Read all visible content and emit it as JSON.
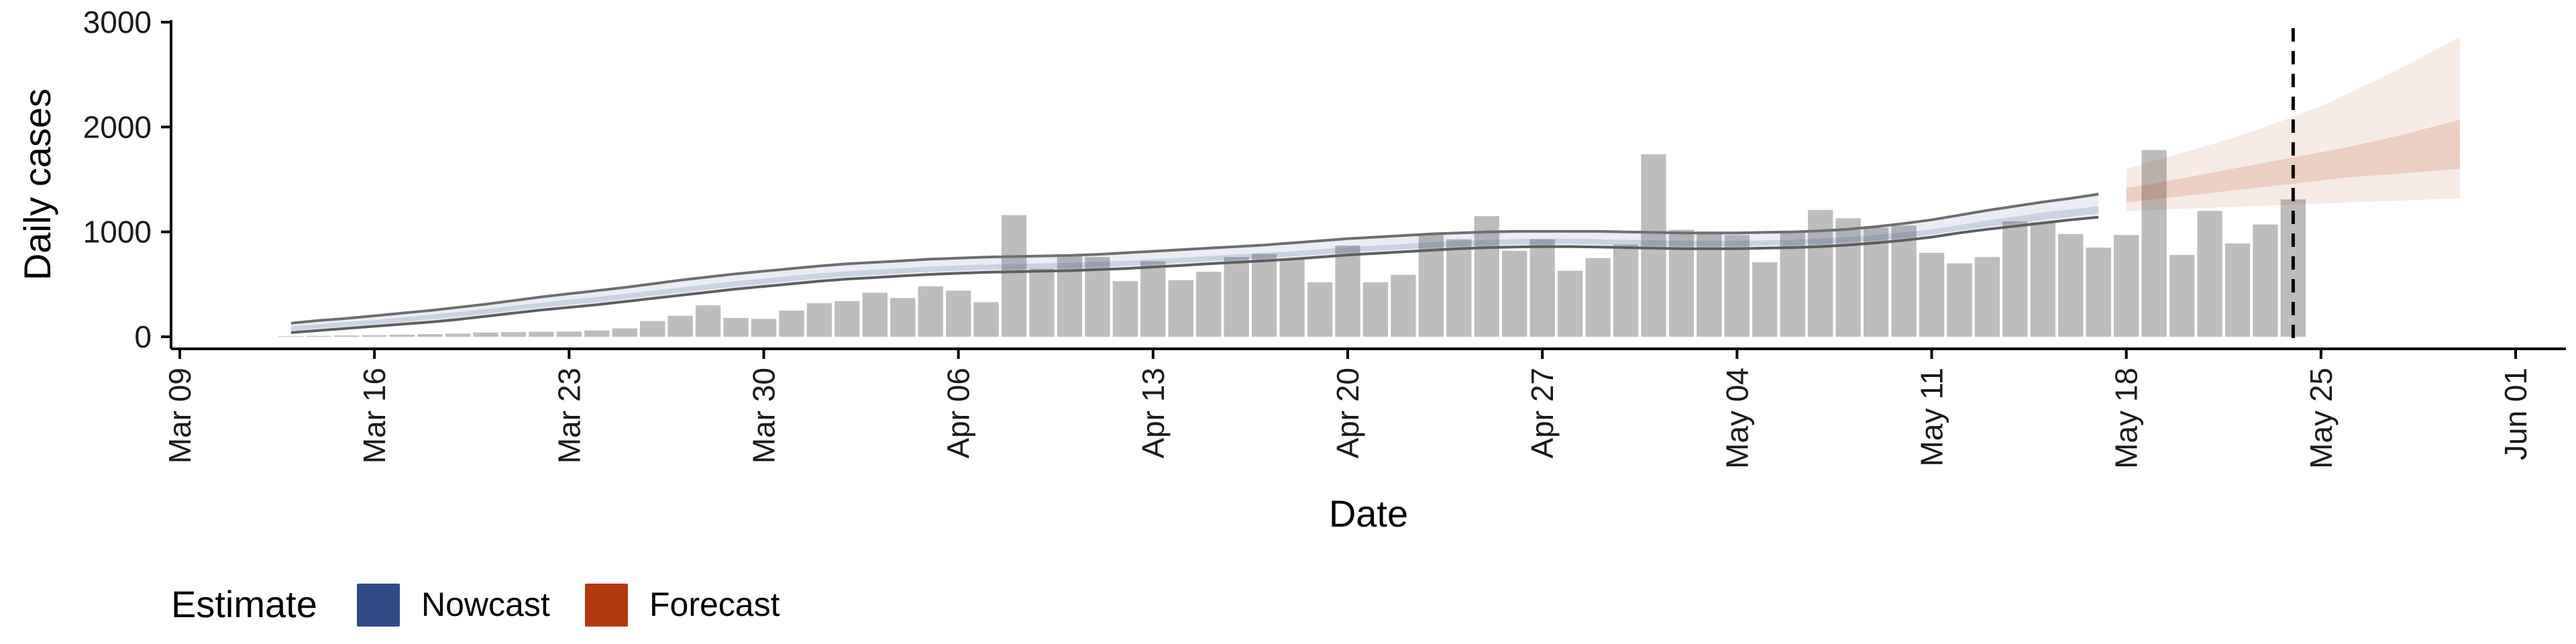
{
  "chart_data": {
    "type": "bar",
    "title": "",
    "xlabel": "Date",
    "ylabel": "Daily cases",
    "ylim": [
      0,
      3000
    ],
    "y_ticks": [
      0,
      1000,
      2000,
      3000
    ],
    "x_range": [
      "2020-03-09",
      "2020-06-01"
    ],
    "x_ticks": [
      {
        "date": "2020-03-09",
        "label": "Mar 09"
      },
      {
        "date": "2020-03-16",
        "label": "Mar 16"
      },
      {
        "date": "2020-03-23",
        "label": "Mar 23"
      },
      {
        "date": "2020-03-30",
        "label": "Mar 30"
      },
      {
        "date": "2020-04-06",
        "label": "Apr 06"
      },
      {
        "date": "2020-04-13",
        "label": "Apr 13"
      },
      {
        "date": "2020-04-20",
        "label": "Apr 20"
      },
      {
        "date": "2020-04-27",
        "label": "Apr 27"
      },
      {
        "date": "2020-05-04",
        "label": "May 04"
      },
      {
        "date": "2020-05-11",
        "label": "May 11"
      },
      {
        "date": "2020-05-18",
        "label": "May 18"
      },
      {
        "date": "2020-05-25",
        "label": "May 25"
      },
      {
        "date": "2020-06-01",
        "label": "Jun 01"
      }
    ],
    "grid": false,
    "bar_color": "#bdbdbd",
    "bars": {
      "start_date": "2020-03-13",
      "values": [
        5,
        8,
        12,
        15,
        20,
        25,
        30,
        40,
        45,
        48,
        50,
        60,
        80,
        150,
        200,
        300,
        180,
        170,
        250,
        320,
        340,
        420,
        370,
        480,
        440,
        330,
        1160,
        650,
        780,
        760,
        530,
        720,
        540,
        620,
        760,
        790,
        740,
        520,
        870,
        520,
        590,
        970,
        930,
        1150,
        820,
        930,
        630,
        750,
        880,
        1740,
        1020,
        990,
        970,
        710,
        1000,
        1210,
        1130,
        1040,
        1060,
        800,
        700,
        760,
        1100,
        1090,
        980,
        850,
        970,
        1780,
        780,
        1200,
        890,
        1070,
        1310
      ]
    },
    "series": [
      {
        "name": "Nowcast",
        "color": "#2e4a87",
        "start_date": "2020-03-13",
        "median": [
          80,
          100,
          120,
          140,
          160,
          185,
          210,
          240,
          270,
          300,
          330,
          355,
          385,
          415,
          445,
          475,
          505,
          530,
          555,
          580,
          600,
          615,
          630,
          645,
          655,
          665,
          670,
          675,
          680,
          690,
          700,
          715,
          730,
          745,
          760,
          775,
          790,
          810,
          830,
          845,
          860,
          875,
          890,
          900,
          905,
          910,
          910,
          905,
          900,
          895,
          890,
          890,
          890,
          895,
          900,
          910,
          925,
          945,
          970,
          1000,
          1040,
          1080,
          1115,
          1150,
          1180,
          1210
        ],
        "lower_outer": [
          40,
          60,
          80,
          100,
          120,
          140,
          165,
          195,
          225,
          255,
          280,
          305,
          335,
          365,
          395,
          425,
          455,
          480,
          505,
          530,
          550,
          565,
          580,
          595,
          605,
          615,
          620,
          625,
          630,
          640,
          650,
          665,
          680,
          695,
          710,
          725,
          740,
          760,
          780,
          795,
          810,
          825,
          840,
          850,
          855,
          860,
          860,
          855,
          850,
          845,
          840,
          840,
          840,
          845,
          850,
          860,
          875,
          895,
          920,
          950,
          990,
          1025,
          1055,
          1085,
          1115,
          1140
        ],
        "upper_outer": [
          130,
          155,
          175,
          200,
          225,
          250,
          280,
          310,
          345,
          380,
          410,
          440,
          470,
          505,
          540,
          570,
          600,
          625,
          650,
          675,
          695,
          710,
          725,
          740,
          750,
          760,
          765,
          770,
          775,
          785,
          800,
          815,
          830,
          845,
          860,
          875,
          895,
          915,
          935,
          950,
          965,
          980,
          990,
          1000,
          1005,
          1005,
          1005,
          1005,
          1000,
          995,
          990,
          990,
          990,
          995,
          1000,
          1010,
          1025,
          1050,
          1080,
          1115,
          1160,
          1205,
          1245,
          1285,
          1320,
          1360
        ],
        "lower_inner": [
          60,
          80,
          100,
          120,
          140,
          165,
          190,
          220,
          250,
          280,
          305,
          330,
          360,
          390,
          420,
          450,
          480,
          505,
          530,
          555,
          575,
          590,
          605,
          620,
          630,
          640,
          645,
          650,
          655,
          665,
          675,
          690,
          705,
          720,
          735,
          750,
          765,
          785,
          805,
          820,
          835,
          850,
          865,
          875,
          880,
          885,
          885,
          880,
          875,
          870,
          865,
          865,
          865,
          870,
          875,
          885,
          900,
          920,
          945,
          975,
          1015,
          1050,
          1085,
          1115,
          1145,
          1175
        ],
        "upper_inner": [
          100,
          120,
          140,
          160,
          185,
          210,
          235,
          265,
          295,
          325,
          355,
          380,
          410,
          440,
          470,
          500,
          530,
          555,
          580,
          605,
          625,
          640,
          655,
          670,
          680,
          690,
          695,
          700,
          705,
          715,
          725,
          740,
          755,
          770,
          785,
          800,
          815,
          835,
          855,
          870,
          885,
          900,
          915,
          925,
          930,
          935,
          935,
          930,
          925,
          920,
          915,
          915,
          915,
          920,
          925,
          935,
          950,
          970,
          995,
          1025,
          1065,
          1110,
          1145,
          1185,
          1215,
          1245
        ]
      },
      {
        "name": "Forecast",
        "color": "#b33a0e",
        "start_date": "2020-05-18",
        "median": [
          1350,
          1380,
          1420,
          1460,
          1500,
          1540,
          1580,
          1620,
          1660,
          1700,
          1740,
          1780,
          1820
        ],
        "lower_outer": [
          1200,
          1210,
          1220,
          1230,
          1240,
          1250,
          1260,
          1270,
          1280,
          1290,
          1300,
          1310,
          1320
        ],
        "upper_outer": [
          1600,
          1680,
          1750,
          1830,
          1910,
          2000,
          2100,
          2200,
          2320,
          2450,
          2580,
          2720,
          2860
        ],
        "lower_inner": [
          1280,
          1310,
          1340,
          1370,
          1400,
          1430,
          1460,
          1490,
          1520,
          1540,
          1560,
          1580,
          1600
        ],
        "upper_inner": [
          1420,
          1460,
          1510,
          1560,
          1610,
          1660,
          1710,
          1760,
          1810,
          1870,
          1930,
          2000,
          2070
        ]
      }
    ],
    "vline": {
      "date": "2020-05-24",
      "style": "dashed"
    },
    "legend": {
      "title": "Estimate",
      "placement": "bottom-left",
      "items": [
        {
          "label": "Nowcast",
          "color": "#2e4a87"
        },
        {
          "label": "Forecast",
          "color": "#b33a0e"
        }
      ]
    }
  }
}
